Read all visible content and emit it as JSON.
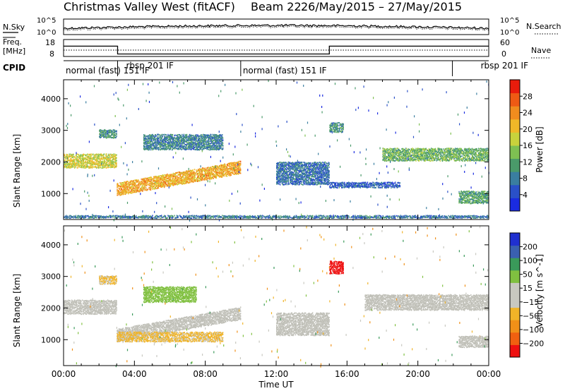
{
  "title": "Christmas Valley West (fitACF)",
  "beam_label": "Beam 22",
  "date_range": "26/May/2015 – 27/May/2015",
  "panels": {
    "noise": {
      "left_label": "N.Sky",
      "left_ticks": [
        "10^5",
        "10^0"
      ],
      "right_ticks": [
        "10^5",
        "10^0"
      ],
      "right_label": "N.Search",
      "right_line_style": "dotted"
    },
    "freq": {
      "left_label_line1": "Freq.",
      "left_label_line2": "[MHz]",
      "left_ticks": [
        "18",
        "8"
      ],
      "right_ticks": [
        "60",
        "0"
      ],
      "right_label": "Nave",
      "right_line_style": "dotted"
    },
    "cpid": {
      "label": "CPID",
      "segments": [
        {
          "start_h": 0.0,
          "end_h": 3.05,
          "text": "normal (fast) 151 IF"
        },
        {
          "start_h": 3.05,
          "end_h": 10.0,
          "text": "rbsp 201 IF"
        },
        {
          "start_h": 10.0,
          "end_h": 21.95,
          "text": "normal (fast) 151 IF"
        },
        {
          "start_h": 21.95,
          "end_h": 24.0,
          "text": "rbsp 201 IF"
        }
      ]
    }
  },
  "colors": {
    "power": [
      "#1a2be0",
      "#2a50c8",
      "#3a7ea0",
      "#4a9a6a",
      "#7ec052",
      "#c8d23c",
      "#f0b828",
      "#f08c1e",
      "#ee5a14",
      "#e81c0c"
    ],
    "velocity": [
      "#ee1010",
      "#f06010",
      "#f09018",
      "#f0b428",
      "#c8c8c0",
      "#c8c8c0",
      "#80c040",
      "#3a9a5a",
      "#3a60b0",
      "#2030d0"
    ],
    "ground_scatter": "#c0c0b8"
  },
  "chart_data": {
    "type": "heatmap",
    "x_axis": {
      "label": "Time UT",
      "ticks": [
        "00:00",
        "04:00",
        "08:00",
        "12:00",
        "16:00",
        "20:00",
        "00:00"
      ],
      "range_hours": [
        0,
        24
      ]
    },
    "y_axis": {
      "label": "Slant Range [km]",
      "ticks": [
        "1000",
        "2000",
        "3000",
        "4000"
      ],
      "range_km": [
        180,
        4600
      ]
    },
    "panels": [
      {
        "name": "power",
        "colorbar_label": "Power [dB]",
        "colorbar_ticks": [
          "4",
          "8",
          "12",
          "16",
          "20",
          "24",
          "28"
        ],
        "range": [
          0,
          32
        ],
        "echo_regions": [
          {
            "t0": 0.0,
            "t1": 3.0,
            "r_center": 2050,
            "r_width": 450,
            "value": 18
          },
          {
            "t0": 2.0,
            "t1": 3.0,
            "r_center": 2900,
            "r_width": 250,
            "value": 10
          },
          {
            "t0": 3.0,
            "t1": 10.0,
            "r_center_start": 1150,
            "r_center_end": 1850,
            "r_width": 400,
            "value": 22
          },
          {
            "t0": 4.5,
            "t1": 9.0,
            "r_center": 2650,
            "r_width": 500,
            "value": 9
          },
          {
            "t0": 12.0,
            "t1": 15.0,
            "r_center": 1650,
            "r_width": 700,
            "value": 7
          },
          {
            "t0": 15.0,
            "t1": 19.0,
            "r_center": 1300,
            "r_width": 200,
            "value": 6
          },
          {
            "t0": 15.0,
            "t1": 15.8,
            "r_center": 3100,
            "r_width": 300,
            "value": 10
          },
          {
            "t0": 18.0,
            "t1": 24.0,
            "r_center": 2250,
            "r_width": 400,
            "value": 13
          },
          {
            "t0": 22.3,
            "t1": 24.0,
            "r_center": 900,
            "r_width": 400,
            "value": 12
          },
          {
            "t0": 0.0,
            "t1": 24.0,
            "r_center": 280,
            "r_width": 80,
            "value": 8
          }
        ]
      },
      {
        "name": "velocity",
        "colorbar_label": "Velocity [m s^-1]",
        "colorbar_ticks": [
          "200",
          "100",
          "50",
          "15",
          "−15",
          "−50",
          "−100",
          "−200"
        ],
        "range": [
          -250,
          250
        ],
        "echo_regions": [
          {
            "t0": 0.0,
            "t1": 3.0,
            "r_center": 2050,
            "r_width": 450,
            "value": 0,
            "ground_scatter": true
          },
          {
            "t0": 2.0,
            "t1": 3.0,
            "r_center": 2900,
            "r_width": 250,
            "value": -60
          },
          {
            "t0": 3.0,
            "t1": 10.0,
            "r_center_start": 1150,
            "r_center_end": 1850,
            "r_width": 400,
            "value": 0,
            "ground_scatter": true
          },
          {
            "t0": 4.5,
            "t1": 7.5,
            "r_center": 2450,
            "r_width": 500,
            "value": 80
          },
          {
            "t0": 12.0,
            "t1": 15.0,
            "r_center": 1500,
            "r_width": 700,
            "value": 0,
            "ground_scatter": true
          },
          {
            "t0": 15.0,
            "t1": 15.8,
            "r_center": 3300,
            "r_width": 400,
            "value": -230
          },
          {
            "t0": 17.0,
            "t1": 24.0,
            "r_center": 2200,
            "r_width": 500,
            "value": 0,
            "ground_scatter": true
          },
          {
            "t0": 22.3,
            "t1": 24.0,
            "r_center": 950,
            "r_width": 350,
            "value": 0,
            "ground_scatter": true
          },
          {
            "t0": 3.0,
            "t1": 9.0,
            "r_center": 1100,
            "r_width": 300,
            "value": -60
          }
        ]
      }
    ]
  }
}
